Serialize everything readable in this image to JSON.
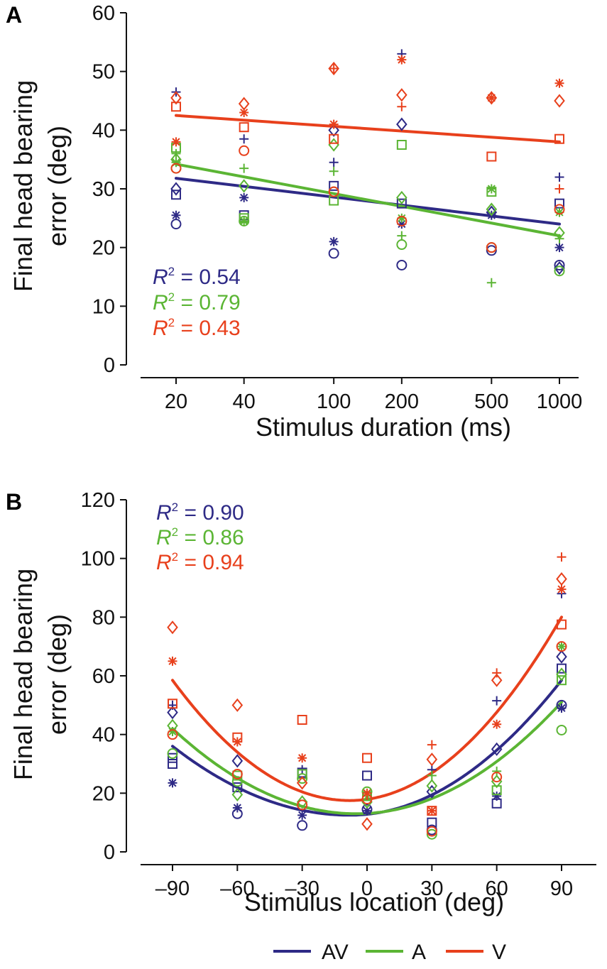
{
  "colors": {
    "AV": "#2e2a86",
    "A": "#5bb534",
    "V": "#e8401c",
    "axis": "#111111"
  },
  "legend": [
    {
      "key": "AV",
      "label": "AV"
    },
    {
      "key": "A",
      "label": "A"
    },
    {
      "key": "V",
      "label": "V"
    }
  ],
  "chart_data": [
    {
      "panel": "A",
      "type": "scatter",
      "xlabel": "Stimulus duration (ms)",
      "ylabel": [
        "Final head bearing",
        "error (deg)"
      ],
      "x_scale": "log",
      "x_ticks": [
        20,
        40,
        100,
        200,
        500,
        1000
      ],
      "x_tick_labels": [
        "20",
        "40",
        "100",
        "200",
        "500",
        "1000"
      ],
      "ylim": [
        0,
        60
      ],
      "y_ticks": [
        0,
        10,
        20,
        30,
        40,
        50,
        60
      ],
      "grid": false,
      "fits": [
        {
          "key": "AV",
          "type": "linear-log",
          "start": [
            20,
            31.8
          ],
          "end": [
            1000,
            24
          ]
        },
        {
          "key": "A",
          "type": "linear-log",
          "start": [
            20,
            34.2
          ],
          "end": [
            1000,
            22
          ]
        },
        {
          "key": "V",
          "type": "linear-log",
          "start": [
            20,
            42.5
          ],
          "end": [
            1000,
            38
          ]
        }
      ],
      "r2": [
        {
          "key": "AV",
          "prefix": "R",
          "sup": "2",
          "text": " = 0.54"
        },
        {
          "key": "A",
          "prefix": "R",
          "sup": "2",
          "text": " = 0.79"
        },
        {
          "key": "V",
          "prefix": "R",
          "sup": "2",
          "text": " = 0.43"
        }
      ],
      "series": [
        {
          "key": "AV",
          "points": [
            [
              20,
              24,
              "circle"
            ],
            [
              20,
              25.5,
              "star"
            ],
            [
              20,
              29,
              "square"
            ],
            [
              20,
              30,
              "diamond"
            ],
            [
              20,
              46.5,
              "plus"
            ],
            [
              40,
              28.5,
              "star"
            ],
            [
              40,
              25.5,
              "square"
            ],
            [
              40,
              38.5,
              "plus"
            ],
            [
              100,
              19,
              "circle"
            ],
            [
              100,
              21,
              "star"
            ],
            [
              100,
              30.5,
              "square"
            ],
            [
              100,
              34.5,
              "plus"
            ],
            [
              100,
              40,
              "diamond"
            ],
            [
              200,
              17,
              "circle"
            ],
            [
              200,
              24,
              "star"
            ],
            [
              200,
              41,
              "diamond"
            ],
            [
              200,
              53,
              "plus"
            ],
            [
              200,
              27.5,
              "square"
            ],
            [
              500,
              19.5,
              "circle"
            ],
            [
              500,
              25.5,
              "star"
            ],
            [
              500,
              26,
              "diamond"
            ],
            [
              1000,
              17,
              "circle"
            ],
            [
              1000,
              20,
              "star"
            ],
            [
              1000,
              27.5,
              "square"
            ],
            [
              1000,
              32,
              "plus"
            ],
            [
              1000,
              16.5,
              "diamond"
            ]
          ]
        },
        {
          "key": "A",
          "points": [
            [
              20,
              33.5,
              "circle"
            ],
            [
              20,
              37,
              "square"
            ],
            [
              20,
              35,
              "diamond"
            ],
            [
              20,
              36,
              "plus"
            ],
            [
              20,
              34.5,
              "star"
            ],
            [
              40,
              24.5,
              "circle"
            ],
            [
              40,
              24.5,
              "star"
            ],
            [
              40,
              33.5,
              "plus"
            ],
            [
              40,
              30.5,
              "diamond"
            ],
            [
              40,
              25,
              "square"
            ],
            [
              100,
              28,
              "square"
            ],
            [
              100,
              37.5,
              "diamond"
            ],
            [
              100,
              33,
              "plus"
            ],
            [
              100,
              29.5,
              "circle"
            ],
            [
              200,
              20.5,
              "circle"
            ],
            [
              200,
              22,
              "plus"
            ],
            [
              200,
              37.5,
              "square"
            ],
            [
              200,
              28.5,
              "diamond"
            ],
            [
              200,
              25,
              "star"
            ],
            [
              500,
              14,
              "plus"
            ],
            [
              500,
              20,
              "circle"
            ],
            [
              500,
              29.5,
              "square"
            ],
            [
              500,
              26.5,
              "diamond"
            ],
            [
              500,
              30,
              "star"
            ],
            [
              1000,
              16,
              "circle"
            ],
            [
              1000,
              22.5,
              "diamond"
            ],
            [
              1000,
              21.5,
              "plus"
            ],
            [
              1000,
              26,
              "star"
            ]
          ]
        },
        {
          "key": "V",
          "points": [
            [
              20,
              44,
              "square"
            ],
            [
              20,
              45.5,
              "diamond"
            ],
            [
              20,
              38,
              "star"
            ],
            [
              20,
              33.5,
              "circle"
            ],
            [
              40,
              44.5,
              "diamond"
            ],
            [
              40,
              43,
              "star"
            ],
            [
              40,
              40.5,
              "square"
            ],
            [
              40,
              36.5,
              "circle"
            ],
            [
              100,
              50.5,
              "diamond"
            ],
            [
              100,
              50.5,
              "plus"
            ],
            [
              100,
              41,
              "star"
            ],
            [
              100,
              38.5,
              "square"
            ],
            [
              100,
              29.5,
              "circle"
            ],
            [
              200,
              46,
              "diamond"
            ],
            [
              200,
              52,
              "star"
            ],
            [
              200,
              44,
              "plus"
            ],
            [
              200,
              24.5,
              "circle"
            ],
            [
              500,
              45.5,
              "diamond"
            ],
            [
              500,
              45.5,
              "star"
            ],
            [
              500,
              35.5,
              "square"
            ],
            [
              500,
              20,
              "circle"
            ],
            [
              1000,
              48,
              "star"
            ],
            [
              1000,
              45,
              "diamond"
            ],
            [
              1000,
              38.5,
              "square"
            ],
            [
              1000,
              30,
              "plus"
            ],
            [
              1000,
              26.5,
              "circle"
            ]
          ]
        }
      ]
    },
    {
      "panel": "B",
      "type": "scatter",
      "xlabel": "Stimulus location (deg)",
      "ylabel": [
        "Final head bearing",
        "error (deg)"
      ],
      "x_ticks": [
        -90,
        -60,
        -30,
        0,
        30,
        60,
        90
      ],
      "x_tick_labels": [
        "–90",
        "–60",
        "–30",
        "0",
        "30",
        "60",
        "90"
      ],
      "xlim": [
        -112,
        112
      ],
      "ylim": [
        0,
        120
      ],
      "y_ticks": [
        0,
        20,
        40,
        60,
        80,
        100,
        120
      ],
      "grid": false,
      "fits": [
        {
          "key": "AV",
          "type": "quadratic",
          "vertex": [
            -8,
            12.5
          ],
          "endpoints": [
            [
              -90,
              36
            ],
            [
              90,
              58.5
            ]
          ]
        },
        {
          "key": "A",
          "type": "quadratic",
          "vertex": [
            -5,
            13
          ],
          "endpoints": [
            [
              -90,
              42
            ],
            [
              90,
              51
            ]
          ]
        },
        {
          "key": "V",
          "type": "quadratic",
          "vertex": [
            -8,
            17.5
          ],
          "endpoints": [
            [
              -90,
              58.5
            ],
            [
              90,
              80
            ]
          ]
        }
      ],
      "r2": [
        {
          "key": "AV",
          "prefix": "R",
          "sup": "2",
          "text": " = 0.90"
        },
        {
          "key": "A",
          "prefix": "R",
          "sup": "2",
          "text": " = 0.86"
        },
        {
          "key": "V",
          "prefix": "R",
          "sup": "2",
          "text": " = 0.94"
        }
      ],
      "series": [
        {
          "key": "AV",
          "points": [
            [
              -90,
              23.5,
              "star"
            ],
            [
              -90,
              30,
              "square"
            ],
            [
              -90,
              32,
              "square"
            ],
            [
              -90,
              47.5,
              "diamond"
            ],
            [
              -90,
              50,
              "plus"
            ],
            [
              -60,
              13,
              "circle"
            ],
            [
              -60,
              15,
              "star"
            ],
            [
              -60,
              22,
              "square"
            ],
            [
              -60,
              31,
              "diamond"
            ],
            [
              -30,
              9,
              "circle"
            ],
            [
              -30,
              12.5,
              "star"
            ],
            [
              -30,
              27,
              "square"
            ],
            [
              -30,
              28,
              "plus"
            ],
            [
              0,
              14,
              "star"
            ],
            [
              0,
              26,
              "square"
            ],
            [
              0,
              14.5,
              "circle"
            ],
            [
              30,
              10,
              "square"
            ],
            [
              30,
              28,
              "plus"
            ],
            [
              30,
              20.5,
              "diamond"
            ],
            [
              30,
              7.5,
              "circle"
            ],
            [
              60,
              16.5,
              "square"
            ],
            [
              60,
              19,
              "star"
            ],
            [
              60,
              35,
              "diamond"
            ],
            [
              60,
              51.5,
              "plus"
            ],
            [
              90,
              49,
              "star"
            ],
            [
              90,
              50,
              "circle"
            ],
            [
              90,
              62.5,
              "square"
            ],
            [
              90,
              66.5,
              "diamond"
            ],
            [
              90,
              88,
              "plus"
            ]
          ]
        },
        {
          "key": "A",
          "points": [
            [
              -90,
              33.5,
              "circle"
            ],
            [
              -90,
              43,
              "diamond"
            ],
            [
              -90,
              41,
              "star"
            ],
            [
              -60,
              19.5,
              "diamond"
            ],
            [
              -60,
              24,
              "circle"
            ],
            [
              -60,
              26,
              "square"
            ],
            [
              -30,
              25,
              "circle"
            ],
            [
              -30,
              26.5,
              "square"
            ],
            [
              -30,
              17,
              "diamond"
            ],
            [
              0,
              20.5,
              "circle"
            ],
            [
              0,
              19,
              "square"
            ],
            [
              0,
              17,
              "diamond"
            ],
            [
              30,
              6,
              "circle"
            ],
            [
              30,
              22.5,
              "diamond"
            ],
            [
              30,
              26,
              "plus"
            ],
            [
              60,
              21,
              "square"
            ],
            [
              60,
              27.5,
              "plus"
            ],
            [
              60,
              24,
              "diamond"
            ],
            [
              90,
              41.5,
              "circle"
            ],
            [
              90,
              58.5,
              "square"
            ],
            [
              90,
              60.5,
              "diamond"
            ],
            [
              90,
              70,
              "star"
            ]
          ]
        },
        {
          "key": "V",
          "points": [
            [
              -90,
              76.5,
              "diamond"
            ],
            [
              -90,
              65,
              "star"
            ],
            [
              -90,
              50.5,
              "square"
            ],
            [
              -90,
              40,
              "circle"
            ],
            [
              -60,
              50,
              "diamond"
            ],
            [
              -60,
              39,
              "square"
            ],
            [
              -60,
              37.5,
              "star"
            ],
            [
              -60,
              26.5,
              "circle"
            ],
            [
              -30,
              45,
              "square"
            ],
            [
              -30,
              32,
              "star"
            ],
            [
              -30,
              23.5,
              "diamond"
            ],
            [
              -30,
              16,
              "circle"
            ],
            [
              0,
              32,
              "square"
            ],
            [
              0,
              9.5,
              "diamond"
            ],
            [
              0,
              18,
              "circle"
            ],
            [
              0,
              20,
              "star"
            ],
            [
              30,
              36.5,
              "plus"
            ],
            [
              30,
              31.5,
              "diamond"
            ],
            [
              30,
              14,
              "star"
            ],
            [
              30,
              7,
              "circle"
            ],
            [
              30,
              14,
              "square"
            ],
            [
              60,
              61,
              "plus"
            ],
            [
              60,
              58.5,
              "diamond"
            ],
            [
              60,
              43.5,
              "star"
            ],
            [
              60,
              25.5,
              "circle"
            ],
            [
              90,
              100.5,
              "plus"
            ],
            [
              90,
              93,
              "diamond"
            ],
            [
              90,
              89.5,
              "star"
            ],
            [
              90,
              77.5,
              "square"
            ],
            [
              90,
              70,
              "circle"
            ]
          ]
        }
      ]
    }
  ]
}
